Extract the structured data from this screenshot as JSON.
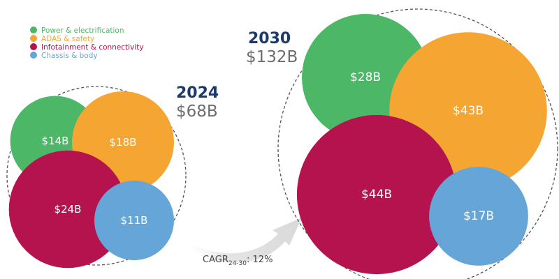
{
  "chart_data": {
    "type": "bubble",
    "legend": {
      "placement": "top-left",
      "items": [
        {
          "name": "Power & electrification",
          "color": "#4cb766"
        },
        {
          "name": "ADAS & safety",
          "color": "#f5a531"
        },
        {
          "name": "Infotainment & connectivity",
          "color": "#b5134d"
        },
        {
          "name": "Chassis & body",
          "color": "#66a5d8"
        }
      ]
    },
    "groups": [
      {
        "year": "2024",
        "total_label": "$68B",
        "total": 68,
        "bubbles": [
          {
            "segment": "Power & electrification",
            "value": 14,
            "label": "$14B"
          },
          {
            "segment": "ADAS & safety",
            "value": 18,
            "label": "$18B"
          },
          {
            "segment": "Infotainment & connectivity",
            "value": 24,
            "label": "$24B"
          },
          {
            "segment": "Chassis & body",
            "value": 11,
            "label": "$11B"
          }
        ]
      },
      {
        "year": "2030",
        "total_label": "$132B",
        "total": 132,
        "bubbles": [
          {
            "segment": "Power & electrification",
            "value": 28,
            "label": "$28B"
          },
          {
            "segment": "ADAS & safety",
            "value": 43,
            "label": "$43B"
          },
          {
            "segment": "Infotainment & connectivity",
            "value": 44,
            "label": "$44B"
          },
          {
            "segment": "Chassis & body",
            "value": 17,
            "label": "$17B"
          }
        ]
      }
    ],
    "growth": {
      "label": "CAGR",
      "subscript": "24-30",
      "value": ": 12%"
    },
    "colors": {
      "year": "#1b3a6b",
      "total": "#6d6d6d",
      "outline": "#555555",
      "arrow": "#e3e3e3"
    }
  }
}
